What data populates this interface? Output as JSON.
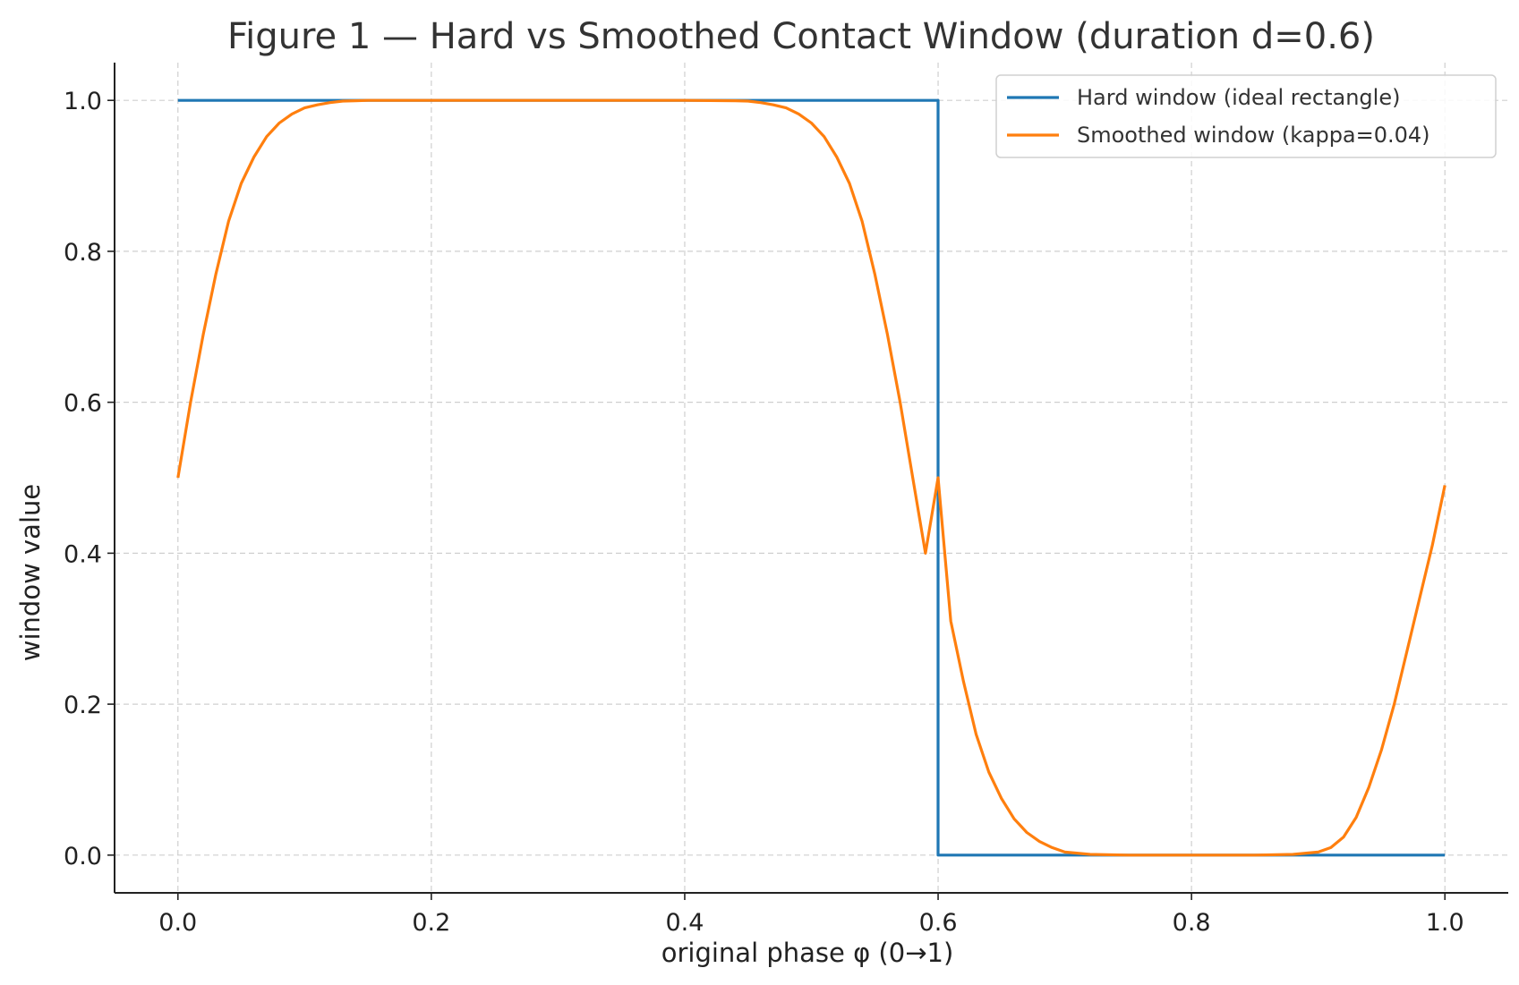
{
  "chart_data": {
    "type": "line",
    "title": "Figure 1 — Hard vs Smoothed Contact Window (duration d=0.6)",
    "xlabel": "original phase φ (0→1)",
    "ylabel": "window value",
    "xlim": [
      -0.05,
      1.05
    ],
    "ylim": [
      -0.05,
      1.05
    ],
    "xticks": [
      0.0,
      0.2,
      0.4,
      0.6,
      0.8,
      1.0
    ],
    "xtick_labels": [
      "0.0",
      "0.2",
      "0.4",
      "0.6",
      "0.8",
      "1.0"
    ],
    "yticks": [
      0.0,
      0.2,
      0.4,
      0.6,
      0.8,
      1.0
    ],
    "ytick_labels": [
      "0.0",
      "0.2",
      "0.4",
      "0.6",
      "0.8",
      "1.0"
    ],
    "grid": true,
    "legend_position": "top-right",
    "series": [
      {
        "name": "Hard window (ideal rectangle)",
        "color": "#1f77b4",
        "x": [
          0.0,
          0.6,
          0.6,
          1.0
        ],
        "y": [
          1.0,
          1.0,
          0.0,
          0.0
        ]
      },
      {
        "name": "Smoothed window (kappa=0.04)",
        "color": "#ff7f0e",
        "x": [
          0.0,
          0.01,
          0.02,
          0.03,
          0.04,
          0.05,
          0.06,
          0.07,
          0.08,
          0.09,
          0.1,
          0.11,
          0.12,
          0.13,
          0.14,
          0.15,
          0.16,
          0.18,
          0.2,
          0.3,
          0.4,
          0.44,
          0.45,
          0.46,
          0.47,
          0.48,
          0.49,
          0.5,
          0.51,
          0.52,
          0.53,
          0.54,
          0.55,
          0.56,
          0.57,
          0.58,
          0.59,
          0.6,
          0.61,
          0.62,
          0.63,
          0.64,
          0.65,
          0.66,
          0.67,
          0.68,
          0.69,
          0.7,
          0.72,
          0.75,
          0.8,
          0.85,
          0.88,
          0.9,
          0.91,
          0.92,
          0.93,
          0.94,
          0.95,
          0.96,
          0.97,
          0.98,
          0.99,
          1.0
        ],
        "y": [
          0.5,
          0.6,
          0.69,
          0.77,
          0.84,
          0.89,
          0.925,
          0.952,
          0.97,
          0.982,
          0.99,
          0.994,
          0.997,
          0.999,
          0.9995,
          1.0,
          1.0,
          1.0,
          1.0,
          1.0,
          1.0,
          0.9995,
          0.999,
          0.997,
          0.994,
          0.99,
          0.982,
          0.97,
          0.952,
          0.925,
          0.89,
          0.84,
          0.77,
          0.69,
          0.6,
          0.5,
          0.4,
          0.5,
          0.31,
          0.23,
          0.16,
          0.11,
          0.075,
          0.048,
          0.03,
          0.018,
          0.01,
          0.004,
          0.001,
          0.0,
          0.0,
          0.0,
          0.001,
          0.004,
          0.01,
          0.024,
          0.05,
          0.09,
          0.14,
          0.2,
          0.27,
          0.34,
          0.41,
          0.49
        ]
      }
    ]
  }
}
